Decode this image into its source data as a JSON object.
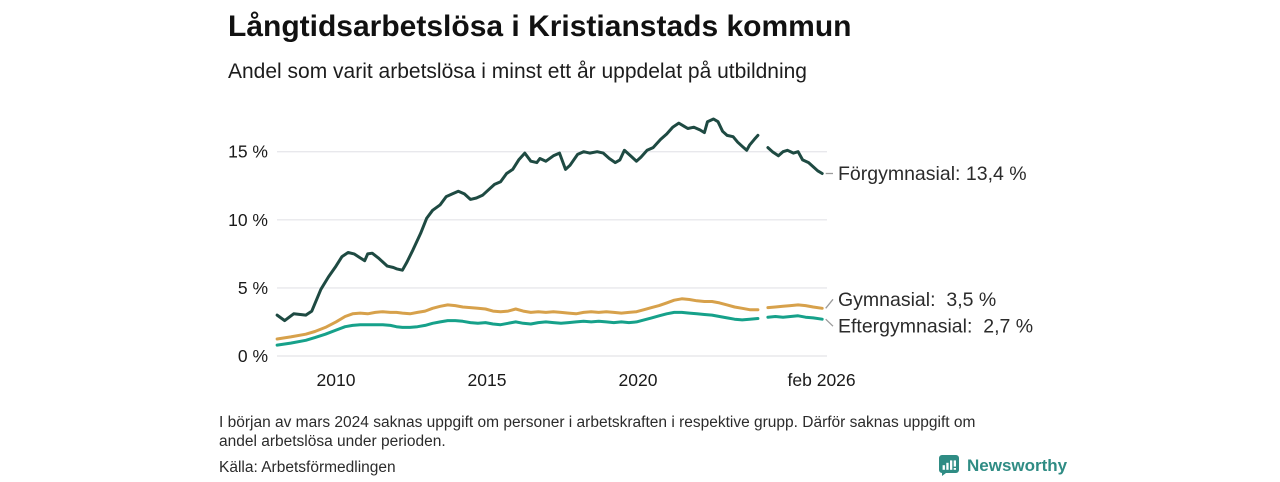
{
  "chart_data": {
    "type": "line",
    "title": "Långtidsarbetslösa i Kristianstads kommun",
    "subtitle": "Andel som varit arbetslösa i minst ett år uppdelat på utbildning",
    "grid": true,
    "legend_position": "right-end-labels",
    "x_axis": {
      "range": [
        2008.05,
        2026.3
      ],
      "ticks": [
        {
          "pos": 2010,
          "label": "2010"
        },
        {
          "pos": 2015,
          "label": "2015"
        },
        {
          "pos": 2020,
          "label": "2020"
        },
        {
          "pos": 2026.08,
          "label": "feb 2026"
        }
      ]
    },
    "y_axis": {
      "range": [
        0,
        18
      ],
      "unit": "%",
      "ticks": [
        {
          "value": 0,
          "label": "0 %"
        },
        {
          "value": 5,
          "label": "5 %"
        },
        {
          "value": 10,
          "label": "10 %"
        },
        {
          "value": 15,
          "label": "15 %"
        }
      ]
    },
    "style": {
      "grid_color": "#e8e8ec",
      "axis_text_color": "#1a1a1a",
      "annotation_text_color": "#2b2b2b",
      "leader_color": "#9b9b9b"
    },
    "data_gap": {
      "from": 2024.0,
      "to": 2024.3
    },
    "series": [
      {
        "id": "forgymnasial",
        "name": "Förgymnasial",
        "color": "#1e4a42",
        "end_label": "Förgymnasial: 13,4 %",
        "end_value": "13,4 %",
        "points": [
          [
            2008.05,
            3.0
          ],
          [
            2008.3,
            2.6
          ],
          [
            2008.6,
            3.1
          ],
          [
            2009.0,
            3.0
          ],
          [
            2009.2,
            3.3
          ],
          [
            2009.5,
            4.9
          ],
          [
            2009.75,
            5.8
          ],
          [
            2010.0,
            6.6
          ],
          [
            2010.2,
            7.3
          ],
          [
            2010.4,
            7.6
          ],
          [
            2010.6,
            7.5
          ],
          [
            2010.8,
            7.2
          ],
          [
            2010.95,
            7.0
          ],
          [
            2011.05,
            7.5
          ],
          [
            2011.2,
            7.55
          ],
          [
            2011.4,
            7.2
          ],
          [
            2011.55,
            6.9
          ],
          [
            2011.7,
            6.6
          ],
          [
            2011.9,
            6.5
          ],
          [
            2012.0,
            6.4
          ],
          [
            2012.2,
            6.3
          ],
          [
            2012.35,
            6.9
          ],
          [
            2012.55,
            7.8
          ],
          [
            2012.8,
            9.0
          ],
          [
            2013.0,
            10.1
          ],
          [
            2013.2,
            10.7
          ],
          [
            2013.45,
            11.1
          ],
          [
            2013.65,
            11.7
          ],
          [
            2013.85,
            11.9
          ],
          [
            2014.05,
            12.1
          ],
          [
            2014.25,
            11.9
          ],
          [
            2014.45,
            11.5
          ],
          [
            2014.65,
            11.6
          ],
          [
            2014.85,
            11.8
          ],
          [
            2015.05,
            12.2
          ],
          [
            2015.25,
            12.6
          ],
          [
            2015.45,
            12.8
          ],
          [
            2015.65,
            13.4
          ],
          [
            2015.85,
            13.7
          ],
          [
            2016.05,
            14.4
          ],
          [
            2016.25,
            14.9
          ],
          [
            2016.45,
            14.3
          ],
          [
            2016.65,
            14.2
          ],
          [
            2016.75,
            14.5
          ],
          [
            2016.95,
            14.3
          ],
          [
            2017.2,
            14.7
          ],
          [
            2017.4,
            14.9
          ],
          [
            2017.6,
            13.7
          ],
          [
            2017.75,
            14.0
          ],
          [
            2018.0,
            14.8
          ],
          [
            2018.2,
            15.0
          ],
          [
            2018.4,
            14.9
          ],
          [
            2018.65,
            15.0
          ],
          [
            2018.85,
            14.9
          ],
          [
            2019.05,
            14.5
          ],
          [
            2019.25,
            14.2
          ],
          [
            2019.4,
            14.4
          ],
          [
            2019.55,
            15.1
          ],
          [
            2019.75,
            14.7
          ],
          [
            2019.95,
            14.3
          ],
          [
            2020.1,
            14.6
          ],
          [
            2020.3,
            15.1
          ],
          [
            2020.5,
            15.3
          ],
          [
            2020.75,
            15.9
          ],
          [
            2020.95,
            16.3
          ],
          [
            2021.15,
            16.8
          ],
          [
            2021.35,
            17.1
          ],
          [
            2021.5,
            16.9
          ],
          [
            2021.65,
            16.7
          ],
          [
            2021.85,
            16.8
          ],
          [
            2022.05,
            16.6
          ],
          [
            2022.2,
            16.4
          ],
          [
            2022.3,
            17.2
          ],
          [
            2022.5,
            17.4
          ],
          [
            2022.65,
            17.2
          ],
          [
            2022.8,
            16.5
          ],
          [
            2022.95,
            16.2
          ],
          [
            2023.15,
            16.1
          ],
          [
            2023.3,
            15.7
          ],
          [
            2023.45,
            15.4
          ],
          [
            2023.6,
            15.1
          ],
          [
            2023.7,
            15.5
          ],
          [
            2023.85,
            15.9
          ],
          [
            2023.97,
            16.2
          ],
          null,
          [
            2024.3,
            15.3
          ],
          [
            2024.45,
            15.0
          ],
          [
            2024.65,
            14.7
          ],
          [
            2024.8,
            15.0
          ],
          [
            2024.95,
            15.1
          ],
          [
            2025.15,
            14.9
          ],
          [
            2025.3,
            15.0
          ],
          [
            2025.45,
            14.4
          ],
          [
            2025.65,
            14.2
          ],
          [
            2025.8,
            13.9
          ],
          [
            2025.95,
            13.6
          ],
          [
            2026.1,
            13.4
          ]
        ]
      },
      {
        "id": "gymnasial",
        "name": "Gymnasial",
        "color": "#d7a14b",
        "end_label": "Gymnasial:  3,5 %",
        "end_value": "3,5 %",
        "points": [
          [
            2008.05,
            1.25
          ],
          [
            2008.5,
            1.4
          ],
          [
            2009.0,
            1.6
          ],
          [
            2009.3,
            1.8
          ],
          [
            2009.65,
            2.1
          ],
          [
            2010.0,
            2.5
          ],
          [
            2010.3,
            2.9
          ],
          [
            2010.55,
            3.1
          ],
          [
            2010.8,
            3.15
          ],
          [
            2011.05,
            3.1
          ],
          [
            2011.3,
            3.2
          ],
          [
            2011.55,
            3.25
          ],
          [
            2011.8,
            3.2
          ],
          [
            2012.0,
            3.2
          ],
          [
            2012.2,
            3.15
          ],
          [
            2012.45,
            3.1
          ],
          [
            2012.7,
            3.2
          ],
          [
            2012.95,
            3.3
          ],
          [
            2013.2,
            3.5
          ],
          [
            2013.45,
            3.65
          ],
          [
            2013.7,
            3.75
          ],
          [
            2013.95,
            3.7
          ],
          [
            2014.2,
            3.6
          ],
          [
            2014.45,
            3.55
          ],
          [
            2014.7,
            3.5
          ],
          [
            2014.95,
            3.45
          ],
          [
            2015.2,
            3.3
          ],
          [
            2015.45,
            3.25
          ],
          [
            2015.7,
            3.3
          ],
          [
            2015.95,
            3.45
          ],
          [
            2016.2,
            3.3
          ],
          [
            2016.45,
            3.2
          ],
          [
            2016.7,
            3.25
          ],
          [
            2016.95,
            3.2
          ],
          [
            2017.2,
            3.25
          ],
          [
            2017.45,
            3.2
          ],
          [
            2017.7,
            3.15
          ],
          [
            2017.95,
            3.1
          ],
          [
            2018.2,
            3.2
          ],
          [
            2018.45,
            3.25
          ],
          [
            2018.7,
            3.2
          ],
          [
            2018.95,
            3.25
          ],
          [
            2019.2,
            3.2
          ],
          [
            2019.45,
            3.15
          ],
          [
            2019.7,
            3.2
          ],
          [
            2019.95,
            3.25
          ],
          [
            2020.2,
            3.4
          ],
          [
            2020.45,
            3.55
          ],
          [
            2020.7,
            3.7
          ],
          [
            2020.95,
            3.9
          ],
          [
            2021.2,
            4.1
          ],
          [
            2021.45,
            4.2
          ],
          [
            2021.7,
            4.15
          ],
          [
            2021.95,
            4.05
          ],
          [
            2022.2,
            4.0
          ],
          [
            2022.45,
            4.0
          ],
          [
            2022.7,
            3.9
          ],
          [
            2022.95,
            3.75
          ],
          [
            2023.2,
            3.6
          ],
          [
            2023.45,
            3.5
          ],
          [
            2023.7,
            3.4
          ],
          [
            2023.97,
            3.4
          ],
          null,
          [
            2024.3,
            3.55
          ],
          [
            2024.55,
            3.6
          ],
          [
            2024.8,
            3.65
          ],
          [
            2025.05,
            3.7
          ],
          [
            2025.3,
            3.75
          ],
          [
            2025.55,
            3.7
          ],
          [
            2025.8,
            3.6
          ],
          [
            2026.1,
            3.5
          ]
        ]
      },
      {
        "id": "eftergymnasial",
        "name": "Eftergymnasial",
        "color": "#16a18a",
        "end_label": "Eftergymnasial:  2,7 %",
        "end_value": "2,7 %",
        "points": [
          [
            2008.05,
            0.8
          ],
          [
            2008.5,
            0.95
          ],
          [
            2009.0,
            1.15
          ],
          [
            2009.3,
            1.35
          ],
          [
            2009.65,
            1.6
          ],
          [
            2010.0,
            1.9
          ],
          [
            2010.3,
            2.15
          ],
          [
            2010.55,
            2.25
          ],
          [
            2010.8,
            2.3
          ],
          [
            2011.05,
            2.3
          ],
          [
            2011.3,
            2.3
          ],
          [
            2011.55,
            2.3
          ],
          [
            2011.8,
            2.25
          ],
          [
            2012.0,
            2.15
          ],
          [
            2012.2,
            2.1
          ],
          [
            2012.45,
            2.1
          ],
          [
            2012.7,
            2.15
          ],
          [
            2012.95,
            2.25
          ],
          [
            2013.2,
            2.4
          ],
          [
            2013.45,
            2.5
          ],
          [
            2013.7,
            2.6
          ],
          [
            2013.95,
            2.6
          ],
          [
            2014.2,
            2.55
          ],
          [
            2014.45,
            2.45
          ],
          [
            2014.7,
            2.4
          ],
          [
            2014.95,
            2.45
          ],
          [
            2015.2,
            2.35
          ],
          [
            2015.45,
            2.3
          ],
          [
            2015.7,
            2.4
          ],
          [
            2015.95,
            2.5
          ],
          [
            2016.2,
            2.4
          ],
          [
            2016.45,
            2.35
          ],
          [
            2016.7,
            2.45
          ],
          [
            2016.95,
            2.5
          ],
          [
            2017.2,
            2.45
          ],
          [
            2017.45,
            2.4
          ],
          [
            2017.7,
            2.45
          ],
          [
            2017.95,
            2.5
          ],
          [
            2018.2,
            2.55
          ],
          [
            2018.45,
            2.5
          ],
          [
            2018.7,
            2.55
          ],
          [
            2018.95,
            2.5
          ],
          [
            2019.2,
            2.45
          ],
          [
            2019.45,
            2.5
          ],
          [
            2019.7,
            2.45
          ],
          [
            2019.95,
            2.5
          ],
          [
            2020.2,
            2.65
          ],
          [
            2020.45,
            2.8
          ],
          [
            2020.7,
            2.95
          ],
          [
            2020.95,
            3.1
          ],
          [
            2021.2,
            3.2
          ],
          [
            2021.45,
            3.2
          ],
          [
            2021.7,
            3.15
          ],
          [
            2021.95,
            3.1
          ],
          [
            2022.2,
            3.05
          ],
          [
            2022.45,
            3.0
          ],
          [
            2022.7,
            2.9
          ],
          [
            2022.95,
            2.8
          ],
          [
            2023.2,
            2.7
          ],
          [
            2023.45,
            2.65
          ],
          [
            2023.7,
            2.7
          ],
          [
            2023.97,
            2.75
          ],
          null,
          [
            2024.3,
            2.85
          ],
          [
            2024.55,
            2.9
          ],
          [
            2024.8,
            2.85
          ],
          [
            2025.05,
            2.9
          ],
          [
            2025.3,
            2.95
          ],
          [
            2025.55,
            2.85
          ],
          [
            2025.8,
            2.8
          ],
          [
            2026.1,
            2.7
          ]
        ]
      }
    ]
  },
  "footer": {
    "note_line1": "I början av mars 2024 saknas uppgift om personer i arbetskraften i respektive grupp. Därför saknas uppgift om",
    "note_line2": "andel arbetslösa under perioden.",
    "source": "Källa: Arbetsförmedlingen"
  },
  "branding": {
    "name": "Newsworthy",
    "color": "#2f8c84"
  }
}
